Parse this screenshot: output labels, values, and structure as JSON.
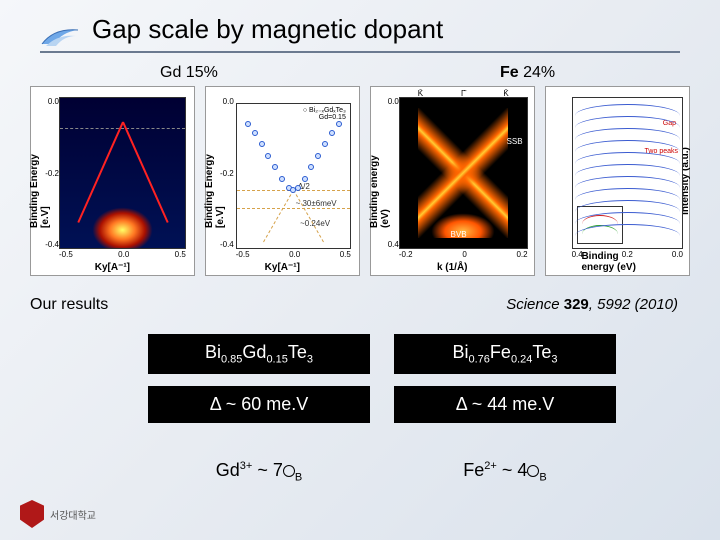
{
  "title": "Gap scale by magnetic dopant",
  "labels": {
    "gd": "Gd 15%",
    "fe_prefix": "Fe",
    "fe_percent": "24%",
    "our_results": "Our results"
  },
  "citation": {
    "journal": "Science",
    "vol": "329",
    "rest": ", 5992 (2010)"
  },
  "table": {
    "left_formula": "Bi<sub class='sub'>0.85</sub>Gd<sub class='sub'>0.15</sub>Te<sub class='sub'>3</sub>",
    "right_formula": "Bi<sub class='sub'>0.76</sub>Fe<sub class='sub'>0.24</sub>Te<sub class='sub'>3</sub>",
    "left_gap": "Δ ~ 60 me.V",
    "right_gap": "Δ ~ 44 me.V"
  },
  "ions": {
    "left": "Gd<sup class='sup'>3+</sup> ~ 7<span class='circ'></span><sub class='sub'>B</sub>",
    "right": "Fe<sup class='sup'>2+</sup> ~ 4<span class='circ'></span><sub class='sub'>B</sub>"
  },
  "fig1": {
    "ylabel": "Binding Energy [e.V]",
    "xlabel": "Ky[A⁻¹]",
    "yticks": [
      "0.0",
      "-0.2",
      "-0.4"
    ],
    "xticks": [
      "-0.5",
      "0.0",
      "0.5"
    ],
    "dirac_cone_color": "#ff2222",
    "colormap_stops": [
      "#000033",
      "#001155",
      "#aa1100",
      "#ff7722",
      "#ffff66"
    ]
  },
  "fig2": {
    "ylabel": "Binding Energy [e.V]",
    "xlabel": "Ky[A⁻¹]",
    "legend_lines": [
      "○ Bi₂₋ₓGdₓTe₃",
      "Gd=0.15"
    ],
    "annot_delta2": "Δ/2",
    "annot_60": "~ 30±6meV",
    "annot_024": "~0.24eV",
    "yticks": [
      "0.0",
      "-0.2",
      "-0.4"
    ],
    "xticks": [
      "-0.5",
      "0.0",
      "0.5"
    ],
    "point_color": "#2a5bd0",
    "dash_color": "#d6a24a",
    "points": [
      {
        "x": 10,
        "y": 14
      },
      {
        "x": 16,
        "y": 20
      },
      {
        "x": 22,
        "y": 28
      },
      {
        "x": 28,
        "y": 36
      },
      {
        "x": 34,
        "y": 44
      },
      {
        "x": 40,
        "y": 52
      },
      {
        "x": 46,
        "y": 58
      },
      {
        "x": 50,
        "y": 60
      },
      {
        "x": 54,
        "y": 58
      },
      {
        "x": 60,
        "y": 52
      },
      {
        "x": 66,
        "y": 44
      },
      {
        "x": 72,
        "y": 36
      },
      {
        "x": 78,
        "y": 28
      },
      {
        "x": 84,
        "y": 20
      },
      {
        "x": 90,
        "y": 14
      }
    ]
  },
  "fig3": {
    "ylabel": "Binding energy (eV)",
    "xlabel": "k (1/Å)",
    "top_labels": [
      "K̄",
      "Γ̄",
      "K̄"
    ],
    "ssb_label": "SSB",
    "bvb_label": "BVB",
    "yticks": [
      "0.0",
      "0.4"
    ],
    "xticks": [
      "-0.2",
      "0",
      "0.2"
    ],
    "band_colors": [
      "#000000",
      "#ff5500",
      "#ffcc33"
    ]
  },
  "fig4": {
    "ylabel": "Intensity (a.u.)",
    "xlabel": "Binding energy (eV)",
    "gap_label": "Gap",
    "two_peaks": "Two peaks",
    "xticks": [
      "0.4",
      "0.2",
      "0.0"
    ],
    "curve_color": "#3a5bd0",
    "n_curves": 11,
    "inset_colors": [
      "#d02020",
      "#2aa02a"
    ]
  },
  "logo": {
    "text": "서강대학교",
    "badge_color": "#b01818"
  }
}
